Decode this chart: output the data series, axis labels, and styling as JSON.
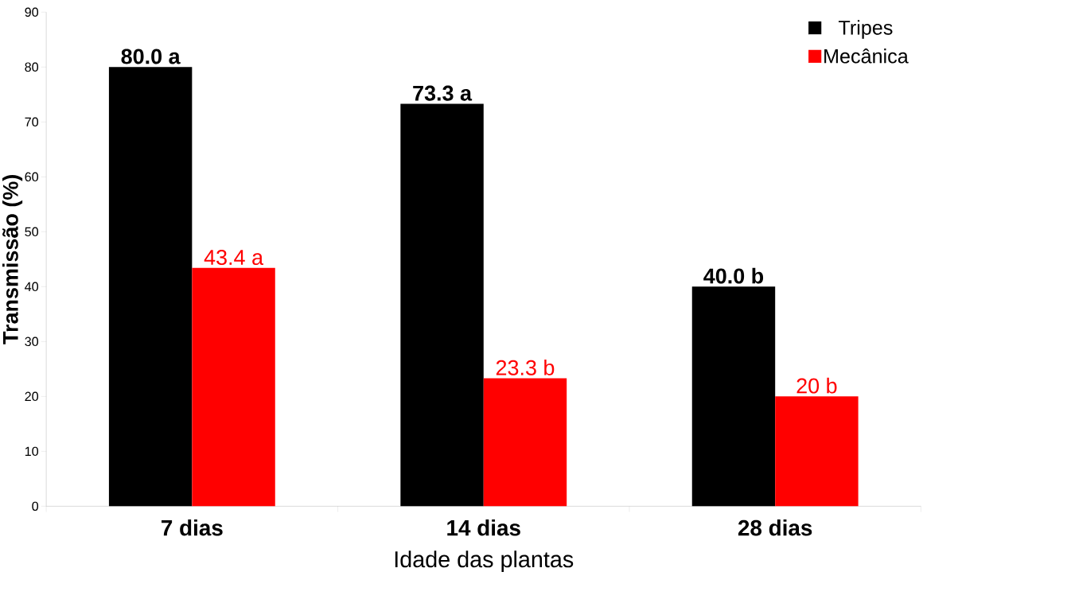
{
  "chart_data": {
    "type": "bar",
    "xlabel": "Idade das plantas",
    "ylabel": "Transmissão (%)",
    "categories": [
      "7 dias",
      "14 dias",
      "28 dias"
    ],
    "series": [
      {
        "name": "Tripes",
        "color": "#000000",
        "values": [
          80.0,
          73.3,
          40.0
        ],
        "value_labels": [
          "80.0 a",
          "73.3 a",
          "40.0 b"
        ]
      },
      {
        "name": "Mecânica",
        "color": "#ff0000",
        "values": [
          43.4,
          23.3,
          20
        ],
        "value_labels": [
          "43.4 a",
          "23.3 b",
          "20 b"
        ]
      }
    ],
    "ylim": [
      0,
      90
    ],
    "yticks": [
      0,
      10,
      20,
      30,
      40,
      50,
      60,
      70,
      80,
      90
    ],
    "legend": "top right"
  }
}
